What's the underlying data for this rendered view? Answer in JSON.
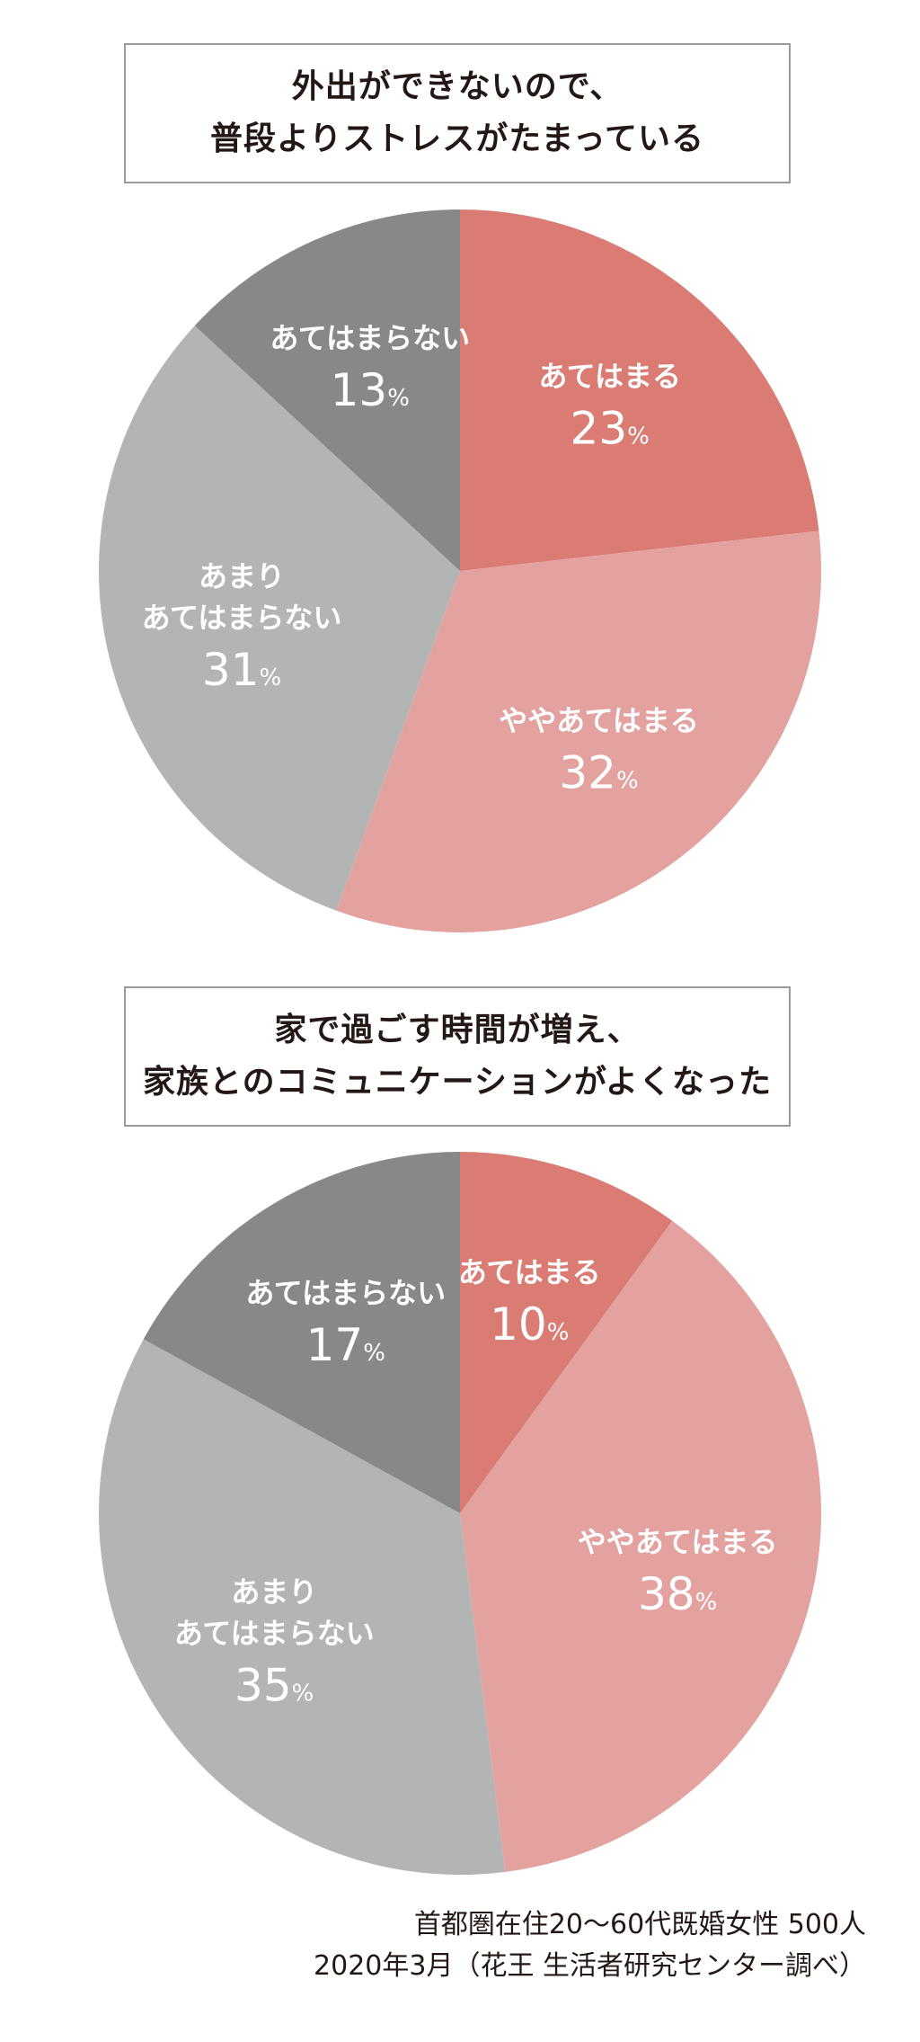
{
  "charts": [
    {
      "title_lines": [
        "外出ができないので、",
        "普段よりストレスがたまっている"
      ]
    },
    {
      "title_lines": [
        "家で過ごす時間が増え、",
        "家族とのコミュニケーションがよくなった"
      ]
    }
  ],
  "chart_data": [
    {
      "type": "pie",
      "title": "外出ができないので、普段よりストレスがたまっている",
      "slices": [
        {
          "label": [
            "あてはまる"
          ],
          "value": 23,
          "color": "#da7b74"
        },
        {
          "label": [
            "ややあてはまる"
          ],
          "value": 32,
          "color": "#e3a29f"
        },
        {
          "label": [
            "あまり",
            "あてはまらない"
          ],
          "value": 31,
          "color": "#b3b4b4"
        },
        {
          "label": [
            "あてはまらない"
          ],
          "value": 13,
          "color": "#888888"
        }
      ],
      "unit": "%"
    },
    {
      "type": "pie",
      "title": "家で過ごす時間が増え、家族とのコミュニケーションがよくなった",
      "slices": [
        {
          "label": [
            "あてはまる"
          ],
          "value": 10,
          "color": "#da7b74"
        },
        {
          "label": [
            "ややあてはまる"
          ],
          "value": 38,
          "color": "#e3a29f"
        },
        {
          "label": [
            "あまり",
            "あてはまらない"
          ],
          "value": 35,
          "color": "#b3b4b4"
        },
        {
          "label": [
            "あてはまらない"
          ],
          "value": 17,
          "color": "#888888"
        }
      ],
      "unit": "%"
    }
  ],
  "source": {
    "line1": "首都圏在住20〜60代既婚女性 500人",
    "line2": "2020年3月（花王 生活者研究センター調べ）"
  }
}
